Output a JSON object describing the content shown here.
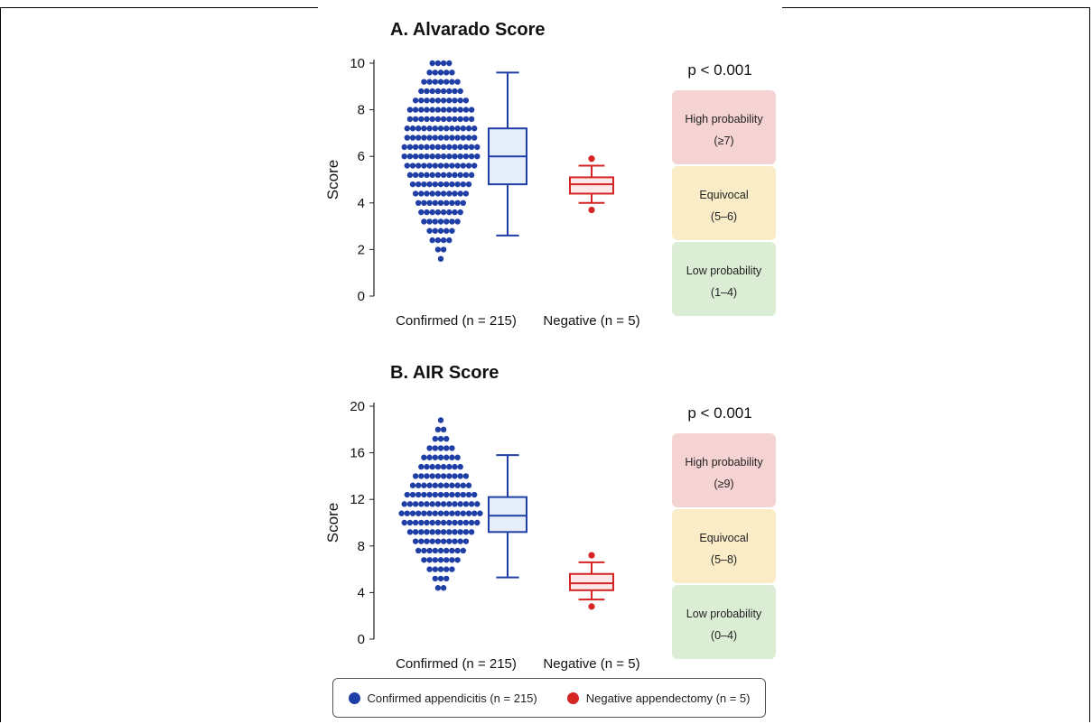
{
  "colors": {
    "confirmed": "#1f3fa6",
    "negative": "#d42424",
    "high": "#f6d3d3",
    "equivocal": "#fbecc8",
    "low": "#dcedd6",
    "box_fill": "#e6eefb"
  },
  "chart_data": [
    {
      "type": "scatter",
      "title": "A. Alvarado Score",
      "ylabel": "Score",
      "ylim": [
        0,
        10
      ],
      "yticks": [
        0,
        2,
        4,
        6,
        8,
        10
      ],
      "categories": [
        "Confirmed (n = 215)",
        "Negative (n = 5)"
      ],
      "pvalue": "p < 0.001",
      "confirmed_box": {
        "min": 2.6,
        "q1": 4.8,
        "median": 6.0,
        "q3": 7.2,
        "max": 9.6
      },
      "negative_box": {
        "min": 4.0,
        "q1": 4.4,
        "median": 4.8,
        "q3": 5.1,
        "max": 5.6,
        "outliers": [
          5.9,
          3.7
        ]
      },
      "confirmed_dist": [
        {
          "y": 1.6,
          "n": 1
        },
        {
          "y": 2.0,
          "n": 2
        },
        {
          "y": 2.4,
          "n": 4
        },
        {
          "y": 2.8,
          "n": 5
        },
        {
          "y": 3.2,
          "n": 7
        },
        {
          "y": 3.6,
          "n": 8
        },
        {
          "y": 4.0,
          "n": 9
        },
        {
          "y": 4.4,
          "n": 10
        },
        {
          "y": 4.8,
          "n": 11
        },
        {
          "y": 5.2,
          "n": 12
        },
        {
          "y": 5.6,
          "n": 13
        },
        {
          "y": 6.0,
          "n": 14
        },
        {
          "y": 6.4,
          "n": 14
        },
        {
          "y": 6.8,
          "n": 13
        },
        {
          "y": 7.2,
          "n": 13
        },
        {
          "y": 7.6,
          "n": 12
        },
        {
          "y": 8.0,
          "n": 12
        },
        {
          "y": 8.4,
          "n": 10
        },
        {
          "y": 8.8,
          "n": 8
        },
        {
          "y": 9.2,
          "n": 7
        },
        {
          "y": 9.6,
          "n": 5
        },
        {
          "y": 10.0,
          "n": 4
        }
      ],
      "zones": [
        {
          "label": "High probability",
          "range": "(≥7)",
          "key": "high"
        },
        {
          "label": "Equivocal",
          "range": "(5–6)",
          "key": "equivocal"
        },
        {
          "label": "Low probability",
          "range": "(1–4)",
          "key": "low"
        }
      ]
    },
    {
      "type": "scatter",
      "title": "B. AIR Score",
      "ylabel": "Score",
      "ylim": [
        0,
        20
      ],
      "yticks": [
        0,
        4,
        8,
        12,
        16,
        20
      ],
      "categories": [
        "Confirmed (n = 215)",
        "Negative (n = 5)"
      ],
      "pvalue": "p < 0.001",
      "confirmed_box": {
        "min": 5.3,
        "q1": 9.2,
        "median": 10.6,
        "q3": 12.2,
        "max": 15.8
      },
      "negative_box": {
        "min": 3.4,
        "q1": 4.2,
        "median": 4.8,
        "q3": 5.6,
        "max": 6.6,
        "outliers": [
          7.2,
          2.8
        ]
      },
      "confirmed_dist": [
        {
          "y": 4.4,
          "n": 2
        },
        {
          "y": 5.2,
          "n": 3
        },
        {
          "y": 6.0,
          "n": 5
        },
        {
          "y": 6.8,
          "n": 7
        },
        {
          "y": 7.6,
          "n": 9
        },
        {
          "y": 8.4,
          "n": 10
        },
        {
          "y": 9.2,
          "n": 12
        },
        {
          "y": 10.0,
          "n": 14
        },
        {
          "y": 10.8,
          "n": 15
        },
        {
          "y": 11.6,
          "n": 14
        },
        {
          "y": 12.4,
          "n": 13
        },
        {
          "y": 13.2,
          "n": 11
        },
        {
          "y": 14.0,
          "n": 10
        },
        {
          "y": 14.8,
          "n": 8
        },
        {
          "y": 15.6,
          "n": 7
        },
        {
          "y": 16.4,
          "n": 5
        },
        {
          "y": 17.2,
          "n": 3
        },
        {
          "y": 18.0,
          "n": 2
        },
        {
          "y": 18.8,
          "n": 1
        }
      ],
      "zones": [
        {
          "label": "High probability",
          "range": "(≥9)",
          "key": "high"
        },
        {
          "label": "Equivocal",
          "range": "(5–8)",
          "key": "equivocal"
        },
        {
          "label": "Low probability",
          "range": "(0–4)",
          "key": "low"
        }
      ]
    }
  ],
  "legend": {
    "confirmed": "Confirmed appendicitis (n = 215)",
    "negative": "Negative appendectomy (n = 5)"
  }
}
